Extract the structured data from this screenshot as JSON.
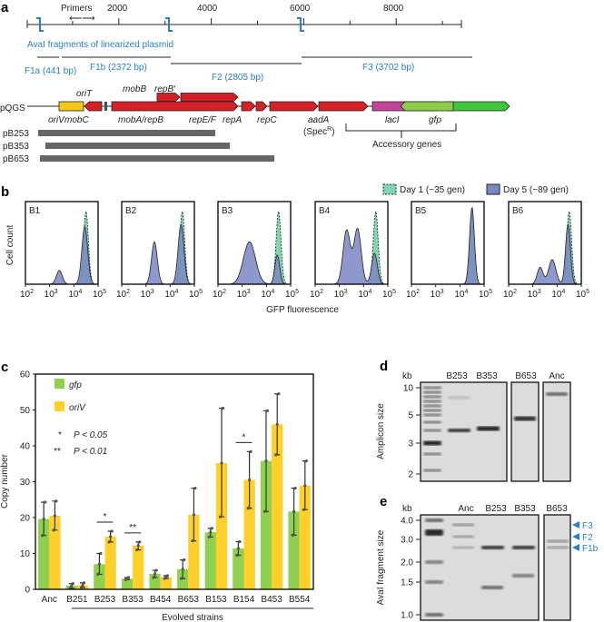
{
  "panels": {
    "a": "a",
    "b": "b",
    "c": "c",
    "d": "d",
    "e": "e"
  },
  "panel_a": {
    "primers_label": "Primers",
    "axis_ticks": [
      "2000",
      "4000",
      "6000",
      "8000"
    ],
    "aval_label": "AvaI fragments of linearized plasmid",
    "fragments": [
      "F1a (441 bp)",
      "F1b (2372 bp)",
      "F2 (2805 bp)",
      "F3 (3702 bp)"
    ],
    "plasmid_label": "pQGS",
    "genes_above": [
      "oriT",
      "mobB",
      "repB′"
    ],
    "genes_below": [
      "oriV",
      "mobC",
      "mobA/repB",
      "repE/F",
      "repA",
      "repC",
      "aadA",
      "lacI",
      "gfp"
    ],
    "spec_label": "(Spec",
    "spec_sup": "R",
    "spec_close": ")",
    "accessory_label": "Accessory genes",
    "deletions": [
      "pB253",
      "pB353",
      "pB653"
    ],
    "colors": {
      "oriV": "#f5c518",
      "rep": "#d42027",
      "aadA": "#c4449a",
      "lacI": "#3fc63a",
      "gfp": "#8dcc4a",
      "fragment": "#2b7fc6"
    }
  },
  "panel_b": {
    "legend": [
      "Day 1 (~35 gen)",
      "Day 5 (~89 gen)"
    ],
    "samples": [
      "B1",
      "B2",
      "B3",
      "B4",
      "B5",
      "B6"
    ],
    "ylabel": "Cell count",
    "xlabel": "GFP fluorescence",
    "xticks_base": "10",
    "xticks_exp": [
      "2",
      "3",
      "4",
      "5"
    ],
    "colors": {
      "day1": "#7fd6b0",
      "day5": "#7b86c4"
    }
  },
  "chart_data": {
    "type": "bar",
    "title": "",
    "xlabel": "Evolved strains",
    "ylabel": "Copy number",
    "ylim": [
      0,
      60
    ],
    "yticks": [
      "0",
      "10",
      "20",
      "30",
      "40",
      "50",
      "60"
    ],
    "categories": [
      "Anc",
      "B251",
      "B253",
      "B353",
      "B454",
      "B653",
      "B153",
      "B154",
      "B453",
      "B554"
    ],
    "series": [
      {
        "name": "gfp",
        "color": "#8fd14f",
        "values": [
          19.6,
          1.0,
          7.0,
          3.0,
          4.3,
          5.6,
          15.9,
          11.4,
          35.8,
          21.7
        ],
        "err_low": [
          15.0,
          0.3,
          4.2,
          2.7,
          3.3,
          3.0,
          14.6,
          9.5,
          21.7,
          15.1
        ],
        "err_high": [
          24.3,
          1.6,
          10.0,
          3.3,
          5.3,
          8.2,
          17.0,
          13.3,
          49.8,
          28.2
        ]
      },
      {
        "name": "oriV",
        "color": "#ffd02a",
        "values": [
          20.5,
          1.1,
          14.7,
          12.2,
          3.4,
          20.8,
          35.2,
          30.5,
          46.0,
          28.9
        ],
        "err_low": [
          16.5,
          0.5,
          13.2,
          11.0,
          3.0,
          13.5,
          20.2,
          22.6,
          37.5,
          22.2
        ],
        "err_high": [
          24.6,
          1.8,
          16.2,
          13.2,
          3.8,
          28.2,
          50.5,
          38.4,
          54.5,
          35.8
        ]
      }
    ],
    "significance": [
      {
        "category": "B253",
        "label": "*"
      },
      {
        "category": "B353",
        "label": "**"
      },
      {
        "category": "B154",
        "label": "*"
      }
    ],
    "legend_significance": [
      {
        "mark": "*",
        "text": "P < 0.05"
      },
      {
        "mark": "**",
        "text": "P < 0.01"
      }
    ],
    "legend_placement": "top-left"
  },
  "panel_d": {
    "kb": "kb",
    "ylabel": "Amplicon size",
    "ticks": [
      "10",
      "5",
      "3",
      "2"
    ],
    "lanes": [
      "B253",
      "B353",
      "B653",
      "Anc"
    ]
  },
  "panel_e": {
    "kb": "kb",
    "ylabel": "AvaI fragment size",
    "ticks": [
      "4.0",
      "3.0",
      "2.0",
      "1.5",
      "1.0"
    ],
    "lanes": [
      "Anc",
      "B253",
      "B353",
      "B653"
    ],
    "arrows": [
      "F3",
      "F2",
      "F1b"
    ]
  }
}
